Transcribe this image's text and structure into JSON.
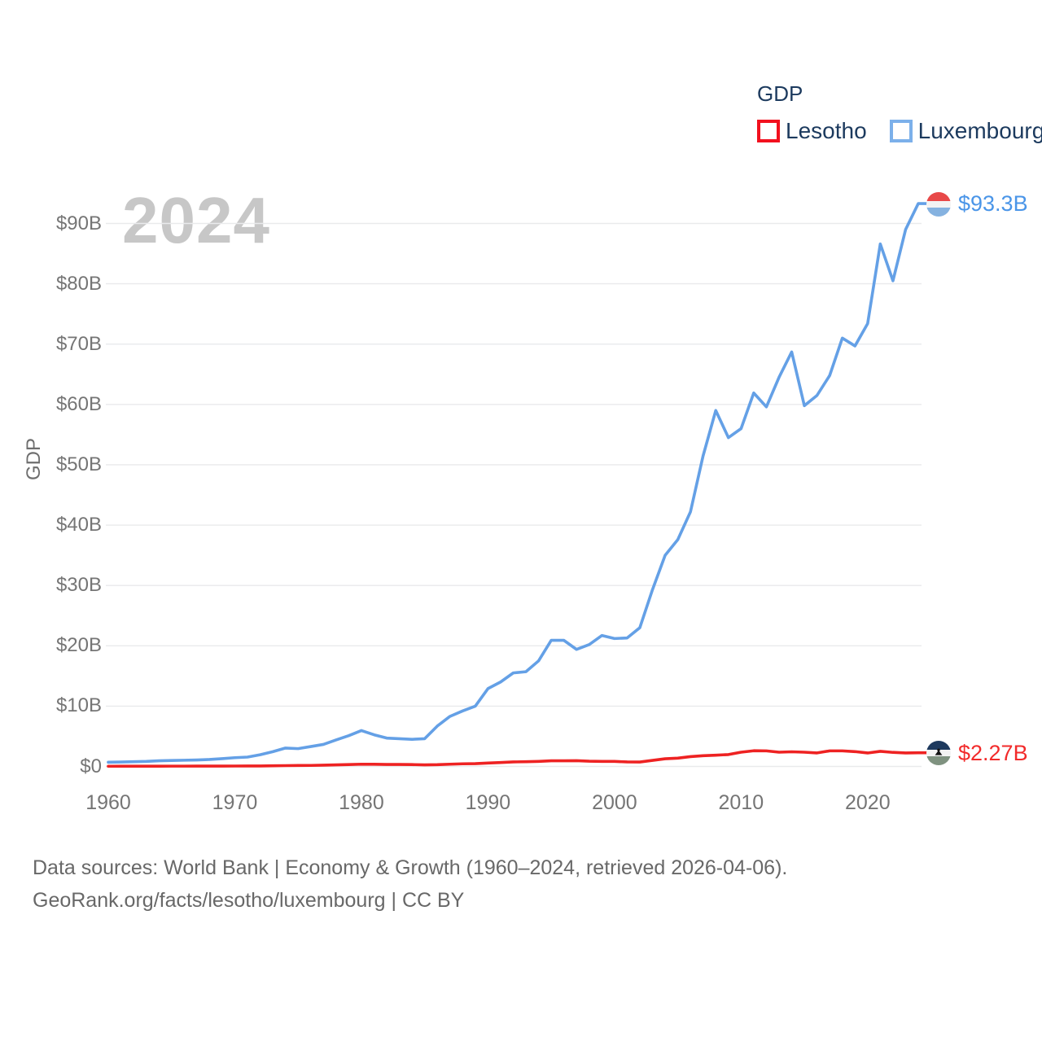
{
  "watermark": "2024",
  "footer": {
    "line1": "Data sources: World Bank | Economy & Growth (1960–2024, retrieved 2026-04-06).",
    "line2": "GeoRank.org/facts/lesotho/luxembourg | CC BY"
  },
  "chart_data": {
    "type": "line",
    "title": "GDP",
    "watermark": "2024",
    "ylabel": "GDP",
    "xlabel": "",
    "grid": true,
    "legend_position": "top-right",
    "xlim": [
      1960,
      2024
    ],
    "ylim": [
      0,
      96
    ],
    "x": [
      1960,
      1961,
      1962,
      1963,
      1964,
      1965,
      1966,
      1967,
      1968,
      1969,
      1970,
      1971,
      1972,
      1973,
      1974,
      1975,
      1976,
      1977,
      1978,
      1979,
      1980,
      1981,
      1982,
      1983,
      1984,
      1985,
      1986,
      1987,
      1988,
      1989,
      1990,
      1991,
      1992,
      1993,
      1994,
      1995,
      1996,
      1997,
      1998,
      1999,
      2000,
      2001,
      2002,
      2003,
      2004,
      2005,
      2006,
      2007,
      2008,
      2009,
      2010,
      2011,
      2012,
      2013,
      2014,
      2015,
      2016,
      2017,
      2018,
      2019,
      2020,
      2021,
      2022,
      2023,
      2024
    ],
    "series": [
      {
        "name": "Lesotho",
        "color": "#ee2222",
        "swatch_border": "#f2101e",
        "end_label": "$2.27B",
        "flag": "lesotho",
        "values": [
          0.035,
          0.037,
          0.039,
          0.042,
          0.045,
          0.049,
          0.052,
          0.056,
          0.059,
          0.063,
          0.068,
          0.077,
          0.082,
          0.107,
          0.136,
          0.16,
          0.17,
          0.215,
          0.26,
          0.31,
          0.37,
          0.36,
          0.33,
          0.33,
          0.31,
          0.26,
          0.29,
          0.37,
          0.44,
          0.47,
          0.57,
          0.65,
          0.75,
          0.78,
          0.84,
          0.94,
          0.93,
          0.95,
          0.87,
          0.84,
          0.83,
          0.75,
          0.73,
          1.0,
          1.27,
          1.37,
          1.63,
          1.78,
          1.87,
          1.97,
          2.36,
          2.6,
          2.58,
          2.36,
          2.43,
          2.36,
          2.24,
          2.58,
          2.58,
          2.46,
          2.23,
          2.5,
          2.33,
          2.23,
          2.27
        ]
      },
      {
        "name": "Luxembourg",
        "color": "#64a0e6",
        "swatch_border": "#7cb0ea",
        "end_label": "$93.3B",
        "flag": "luxembourg",
        "values": [
          0.7,
          0.74,
          0.78,
          0.83,
          0.94,
          0.98,
          1.03,
          1.07,
          1.15,
          1.29,
          1.45,
          1.55,
          1.94,
          2.45,
          3.05,
          2.95,
          3.3,
          3.65,
          4.4,
          5.1,
          5.95,
          5.25,
          4.7,
          4.6,
          4.5,
          4.6,
          6.7,
          8.3,
          9.2,
          10.0,
          12.9,
          14.0,
          15.5,
          15.7,
          17.5,
          20.9,
          20.9,
          19.4,
          20.2,
          21.7,
          21.2,
          21.3,
          23.0,
          29.3,
          35.0,
          37.6,
          42.2,
          51.5,
          59.0,
          54.5,
          56.0,
          61.9,
          59.6,
          64.5,
          68.7,
          59.8,
          61.5,
          64.8,
          71.0,
          69.7,
          73.4,
          86.6,
          80.5,
          89.0,
          93.3
        ]
      }
    ],
    "yticks": {
      "values": [
        0,
        10,
        20,
        30,
        40,
        50,
        60,
        70,
        80,
        90
      ],
      "labels": [
        "$0",
        "$10B",
        "$20B",
        "$30B",
        "$40B",
        "$50B",
        "$60B",
        "$70B",
        "$80B",
        "$90B"
      ]
    },
    "xticks": {
      "values": [
        1960,
        1970,
        1980,
        1990,
        2000,
        2010,
        2020
      ],
      "labels": [
        "1960",
        "1970",
        "1980",
        "1990",
        "2000",
        "2010",
        "2020"
      ]
    }
  }
}
